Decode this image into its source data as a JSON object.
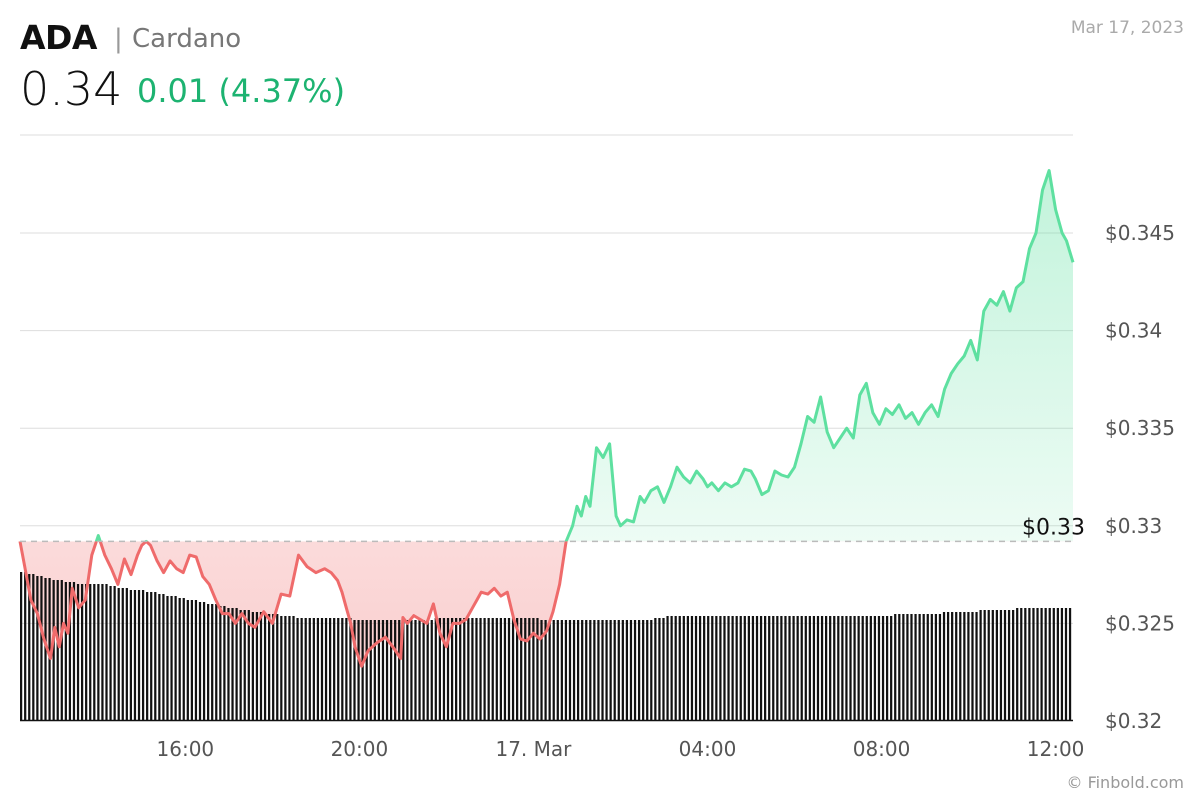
{
  "header": {
    "ticker": "ADA",
    "separator": "|",
    "name": "Cardano",
    "price": "0.34",
    "change": "0.01 (4.37%)",
    "date": "Mar 17, 2023"
  },
  "footer": {
    "credit": "© Finbold.com"
  },
  "colors": {
    "up": "#5ee0a0",
    "down": "#ef6b6b",
    "change_text": "#1db371",
    "grid": "#dddddd",
    "volume": "#111111"
  },
  "chart_data": {
    "type": "area",
    "title": "",
    "xlabel": "",
    "ylabel": "",
    "ylim": [
      0.32,
      0.35
    ],
    "y_ticks": [
      {
        "value": 0.32,
        "label": "$0.32"
      },
      {
        "value": 0.325,
        "label": "$0.325"
      },
      {
        "value": 0.33,
        "label": "$0.33"
      },
      {
        "value": 0.335,
        "label": "$0.335"
      },
      {
        "value": 0.34,
        "label": "$0.34"
      },
      {
        "value": 0.345,
        "label": "$0.345"
      }
    ],
    "x_ticks": [
      "16:00",
      "20:00",
      "17. Mar",
      "04:00",
      "08:00",
      "12:00"
    ],
    "x_tick_hours": [
      16,
      20,
      24,
      28,
      32,
      36
    ],
    "x_range_hours": [
      12.2,
      36.4
    ],
    "previous_close": {
      "value": 0.3292,
      "label": "$0.33"
    },
    "grid": true,
    "legend": "none",
    "series": [
      {
        "x_hours": [
          12.2,
          12.3,
          12.45,
          12.6,
          12.75,
          12.9,
          13.0,
          13.1,
          13.2,
          13.3,
          13.4,
          13.55,
          13.7,
          13.85,
          14.0,
          14.15,
          14.3,
          14.45,
          14.6,
          14.75,
          14.9,
          15.0,
          15.1,
          15.2,
          15.35,
          15.5,
          15.65,
          15.8,
          15.95,
          16.1,
          16.25,
          16.4,
          16.55,
          16.7,
          16.85,
          17.0,
          17.15,
          17.3,
          17.45,
          17.6,
          17.8,
          18.0,
          18.2,
          18.4,
          18.6,
          18.8,
          19.0,
          19.2,
          19.35,
          19.5,
          19.6,
          19.7,
          19.8,
          19.9,
          20.05,
          20.2,
          20.4,
          20.6,
          20.8,
          20.95,
          21.0,
          21.1,
          21.25,
          21.4,
          21.55,
          21.7,
          21.85,
          22.0,
          22.15,
          22.3,
          22.45,
          22.6,
          22.7,
          22.8,
          22.95,
          23.1,
          23.25,
          23.4,
          23.55,
          23.7,
          23.85,
          24.0,
          24.15,
          24.3,
          24.45,
          24.6,
          24.75,
          24.9,
          25.0,
          25.1,
          25.2,
          25.3,
          25.45,
          25.6,
          25.75,
          25.9,
          26.0,
          26.15,
          26.3,
          26.45,
          26.55,
          26.7,
          26.85,
          27.0,
          27.15,
          27.3,
          27.45,
          27.6,
          27.75,
          27.9,
          28.0,
          28.1,
          28.25,
          28.4,
          28.55,
          28.7,
          28.85,
          29.0,
          29.1,
          29.25,
          29.4,
          29.55,
          29.7,
          29.85,
          30.0,
          30.15,
          30.3,
          30.45,
          30.6,
          30.75,
          30.9,
          31.05,
          31.2,
          31.35,
          31.5,
          31.65,
          31.8,
          31.95,
          32.1,
          32.25,
          32.4,
          32.55,
          32.7,
          32.85,
          33.0,
          33.15,
          33.3,
          33.45,
          33.6,
          33.75,
          33.9,
          34.05,
          34.2,
          34.35,
          34.5,
          34.65,
          34.8,
          34.95,
          35.1,
          35.25,
          35.4,
          35.55,
          35.7,
          35.85,
          36.0,
          36.15,
          36.25,
          36.4
        ],
        "values": [
          0.3292,
          0.328,
          0.3262,
          0.3255,
          0.3242,
          0.3232,
          0.3248,
          0.3238,
          0.325,
          0.3245,
          0.3268,
          0.3258,
          0.3262,
          0.3285,
          0.3295,
          0.3285,
          0.3278,
          0.327,
          0.3283,
          0.3275,
          0.3285,
          0.329,
          0.3292,
          0.329,
          0.3282,
          0.3276,
          0.3282,
          0.3278,
          0.3276,
          0.3285,
          0.3284,
          0.3274,
          0.327,
          0.3262,
          0.3255,
          0.3255,
          0.325,
          0.3255,
          0.325,
          0.3248,
          0.3256,
          0.325,
          0.3265,
          0.3264,
          0.3285,
          0.3279,
          0.3276,
          0.3278,
          0.3276,
          0.3272,
          0.3266,
          0.3258,
          0.325,
          0.3238,
          0.3228,
          0.3236,
          0.324,
          0.3243,
          0.3237,
          0.3232,
          0.3253,
          0.325,
          0.3254,
          0.3252,
          0.325,
          0.326,
          0.3245,
          0.3238,
          0.325,
          0.325,
          0.3252,
          0.3258,
          0.3262,
          0.3266,
          0.3265,
          0.3268,
          0.3264,
          0.3266,
          0.3252,
          0.3242,
          0.3241,
          0.3245,
          0.3242,
          0.3246,
          0.3256,
          0.327,
          0.3292,
          0.33,
          0.331,
          0.3305,
          0.3315,
          0.331,
          0.334,
          0.3335,
          0.3342,
          0.3305,
          0.33,
          0.3303,
          0.3302,
          0.3315,
          0.3312,
          0.3318,
          0.332,
          0.3312,
          0.332,
          0.333,
          0.3325,
          0.3322,
          0.3328,
          0.3324,
          0.332,
          0.3322,
          0.3318,
          0.3322,
          0.332,
          0.3322,
          0.3329,
          0.3328,
          0.3324,
          0.3316,
          0.3318,
          0.3328,
          0.3326,
          0.3325,
          0.333,
          0.3342,
          0.3356,
          0.3353,
          0.3366,
          0.3348,
          0.334,
          0.3345,
          0.335,
          0.3345,
          0.3367,
          0.3373,
          0.3358,
          0.3352,
          0.336,
          0.3357,
          0.3362,
          0.3355,
          0.3358,
          0.3352,
          0.3358,
          0.3362,
          0.3356,
          0.337,
          0.3378,
          0.3383,
          0.3387,
          0.3395,
          0.3385,
          0.341,
          0.3416,
          0.3413,
          0.342,
          0.341,
          0.3422,
          0.3425,
          0.3442,
          0.345,
          0.3472,
          0.3482,
          0.3462,
          0.345,
          0.3446,
          0.3435
        ]
      }
    ],
    "volume": {
      "x_hours_range": [
        12.2,
        36.4
      ],
      "values": [
        7.4,
        7.4,
        7.3,
        7.3,
        7.2,
        7.2,
        7.1,
        7.1,
        7.0,
        7.0,
        7.0,
        6.9,
        6.9,
        6.9,
        6.8,
        6.8,
        6.8,
        6.8,
        6.8,
        6.8,
        6.8,
        6.8,
        6.7,
        6.7,
        6.6,
        6.6,
        6.6,
        6.5,
        6.5,
        6.5,
        6.5,
        6.4,
        6.4,
        6.4,
        6.3,
        6.3,
        6.2,
        6.2,
        6.2,
        6.1,
        6.1,
        6.0,
        6.0,
        6.0,
        5.9,
        5.9,
        5.8,
        5.8,
        5.8,
        5.7,
        5.7,
        5.6,
        5.6,
        5.6,
        5.5,
        5.5,
        5.5,
        5.4,
        5.4,
        5.4,
        5.3,
        5.3,
        5.3,
        5.3,
        5.2,
        5.2,
        5.2,
        5.2,
        5.1,
        5.1,
        5.1,
        5.1,
        5.1,
        5.1,
        5.1,
        5.1,
        5.1,
        5.1,
        5.1,
        5.1,
        5.1,
        5.1,
        5.0,
        5.0,
        5.0,
        5.0,
        5.0,
        5.0,
        5.0,
        5.0,
        5.0,
        5.0,
        5.0,
        5.0,
        5.0,
        5.0,
        5.0,
        5.0,
        5.0,
        5.0,
        5.0,
        5.0,
        5.1,
        5.1,
        5.1,
        5.1,
        5.1,
        5.1,
        5.1,
        5.1,
        5.1,
        5.1,
        5.1,
        5.1,
        5.1,
        5.1,
        5.1,
        5.1,
        5.1,
        5.1,
        5.1,
        5.1,
        5.1,
        5.1,
        5.1,
        5.1,
        5.1,
        5.1,
        5.0,
        5.0,
        5.0,
        5.0,
        5.0,
        5.0,
        5.0,
        5.0,
        5.0,
        5.0,
        5.0,
        5.0,
        5.0,
        5.0,
        5.0,
        5.0,
        5.0,
        5.0,
        5.0,
        5.0,
        5.0,
        5.0,
        5.0,
        5.0,
        5.0,
        5.0,
        5.0,
        5.0,
        5.1,
        5.1,
        5.1,
        5.2,
        5.2,
        5.2,
        5.2,
        5.2,
        5.2,
        5.2,
        5.2,
        5.2,
        5.2,
        5.2,
        5.2,
        5.2,
        5.2,
        5.2,
        5.2,
        5.2,
        5.2,
        5.2,
        5.2,
        5.2,
        5.2,
        5.2,
        5.2,
        5.2,
        5.2,
        5.2,
        5.2,
        5.2,
        5.2,
        5.2,
        5.2,
        5.2,
        5.2,
        5.2,
        5.2,
        5.2,
        5.2,
        5.2,
        5.2,
        5.2,
        5.2,
        5.2,
        5.2,
        5.2,
        5.2,
        5.2,
        5.2,
        5.2,
        5.2,
        5.2,
        5.2,
        5.2,
        5.2,
        5.2,
        5.2,
        5.3,
        5.3,
        5.3,
        5.3,
        5.3,
        5.3,
        5.3,
        5.3,
        5.3,
        5.3,
        5.3,
        5.3,
        5.4,
        5.4,
        5.4,
        5.4,
        5.4,
        5.4,
        5.4,
        5.4,
        5.4,
        5.5,
        5.5,
        5.5,
        5.5,
        5.5,
        5.5,
        5.5,
        5.5,
        5.5,
        5.6,
        5.6,
        5.6,
        5.6,
        5.6,
        5.6,
        5.6,
        5.6,
        5.6,
        5.6,
        5.6,
        5.6,
        5.6,
        5.6
      ]
    }
  }
}
